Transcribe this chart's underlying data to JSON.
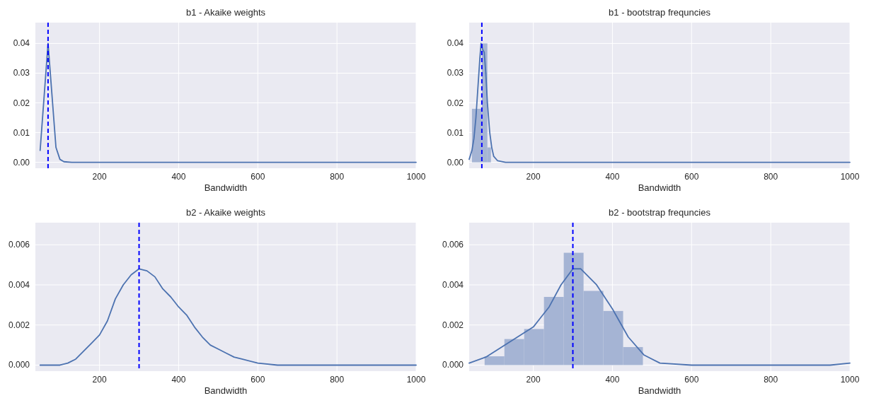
{
  "chart_data": [
    {
      "type": "line",
      "title": "b1 - Akaike weights",
      "xlabel": "Bandwidth",
      "xlim": [
        38,
        1000
      ],
      "xticks": [
        200,
        400,
        600,
        800,
        1000
      ],
      "ylim": [
        -0.002,
        0.047
      ],
      "yticks": [
        {
          "value": 0,
          "label": "0.00"
        },
        {
          "value": 0.01,
          "label": "0.01"
        },
        {
          "value": 0.02,
          "label": "0.02"
        },
        {
          "value": 0.03,
          "label": "0.03"
        },
        {
          "value": 0.04,
          "label": "0.04"
        }
      ],
      "grid": true,
      "ref_lines": [
        {
          "axis": "x",
          "value": 70,
          "color": "#0000ff",
          "line_style": "dashed"
        }
      ],
      "series": [
        {
          "color": "#4c72b0",
          "x": [
            50,
            70,
            90,
            100,
            110,
            130,
            200,
            400,
            600,
            800,
            1000
          ],
          "values": [
            0.004,
            0.04,
            0.005,
            0.001,
            0.0002,
            0,
            0,
            0,
            0,
            0,
            0
          ]
        }
      ]
    },
    {
      "type": "histogram",
      "title": "b1 - bootstrap frequncies",
      "xlabel": "Bandwidth",
      "xlim": [
        38,
        1000
      ],
      "xticks": [
        200,
        400,
        600,
        800,
        1000
      ],
      "ylim": [
        -0.002,
        0.047
      ],
      "yticks": [
        {
          "value": 0,
          "label": "0.00"
        },
        {
          "value": 0.01,
          "label": "0.01"
        },
        {
          "value": 0.02,
          "label": "0.02"
        },
        {
          "value": 0.03,
          "label": "0.03"
        },
        {
          "value": 0.04,
          "label": "0.04"
        }
      ],
      "grid": true,
      "ref_lines": [
        {
          "axis": "x",
          "value": 70,
          "color": "#0000ff",
          "line_style": "dashed"
        }
      ],
      "series": [
        {
          "color": "#a5b4d4",
          "bins": [
            45,
            70,
            84,
            93
          ],
          "values": [
            0.018,
            0.04,
            0.005
          ]
        },
        {
          "type": "line",
          "color": "#4c72b0",
          "x": [
            38,
            45,
            50,
            55,
            60,
            65,
            68,
            72,
            76,
            80,
            84,
            90,
            95,
            100,
            110,
            130,
            200,
            400,
            600,
            800,
            1000
          ],
          "values": [
            0.001,
            0.004,
            0.008,
            0.015,
            0.025,
            0.035,
            0.04,
            0.038,
            0.037,
            0.03,
            0.02,
            0.01,
            0.005,
            0.002,
            0.0005,
            0,
            0,
            0,
            0,
            0,
            0
          ]
        }
      ]
    },
    {
      "type": "line",
      "title": "b2 - Akaike weights",
      "xlabel": "Bandwidth",
      "xlim": [
        38,
        1000
      ],
      "xticks": [
        200,
        400,
        600,
        800,
        1000
      ],
      "ylim": [
        -0.0003,
        0.0071
      ],
      "yticks": [
        {
          "value": 0,
          "label": "0.000"
        },
        {
          "value": 0.002,
          "label": "0.002"
        },
        {
          "value": 0.004,
          "label": "0.004"
        },
        {
          "value": 0.006,
          "label": "0.006"
        }
      ],
      "grid": true,
      "ref_lines": [
        {
          "axis": "x",
          "value": 300,
          "color": "#0000ff",
          "line_style": "dashed"
        }
      ],
      "series": [
        {
          "color": "#4c72b0",
          "x": [
            50,
            100,
            120,
            140,
            160,
            180,
            200,
            220,
            240,
            260,
            280,
            300,
            320,
            340,
            360,
            380,
            400,
            420,
            440,
            460,
            480,
            500,
            520,
            540,
            560,
            600,
            650,
            700,
            800,
            1000
          ],
          "values": [
            0,
            0,
            0.0001,
            0.0003,
            0.0007,
            0.0011,
            0.0015,
            0.0022,
            0.0033,
            0.004,
            0.0045,
            0.0048,
            0.0047,
            0.0044,
            0.0038,
            0.0034,
            0.0029,
            0.0025,
            0.0019,
            0.0014,
            0.001,
            0.0008,
            0.0006,
            0.0004,
            0.0003,
            0.0001,
            0,
            0,
            0,
            0
          ]
        }
      ]
    },
    {
      "type": "histogram",
      "title": "b2 - bootstrap frequncies",
      "xlabel": "Bandwidth",
      "xlim": [
        38,
        1000
      ],
      "xticks": [
        200,
        400,
        600,
        800,
        1000
      ],
      "ylim": [
        -0.0003,
        0.0071
      ],
      "yticks": [
        {
          "value": 0,
          "label": "0.000"
        },
        {
          "value": 0.002,
          "label": "0.002"
        },
        {
          "value": 0.004,
          "label": "0.004"
        },
        {
          "value": 0.006,
          "label": "0.006"
        }
      ],
      "grid": true,
      "ref_lines": [
        {
          "axis": "x",
          "value": 300,
          "color": "#0000ff",
          "line_style": "dashed"
        }
      ],
      "series": [
        {
          "color": "#a5b4d4",
          "bins": [
            77,
            127,
            177,
            227,
            277,
            327,
            377,
            427,
            477
          ],
          "values": [
            0.00044,
            0.0013,
            0.0018,
            0.0034,
            0.0056,
            0.0037,
            0.0027,
            0.0009
          ]
        },
        {
          "type": "line",
          "color": "#4c72b0",
          "x": [
            38,
            80,
            120,
            160,
            200,
            240,
            270,
            300,
            320,
            360,
            400,
            440,
            480,
            520,
            600,
            800,
            950,
            1000
          ],
          "values": [
            0.0001,
            0.0004,
            0.0009,
            0.0014,
            0.0019,
            0.0029,
            0.004,
            0.0048,
            0.0048,
            0.004,
            0.0028,
            0.0014,
            0.0005,
            0.0001,
            0,
            0,
            0,
            0.0001
          ]
        }
      ]
    }
  ]
}
